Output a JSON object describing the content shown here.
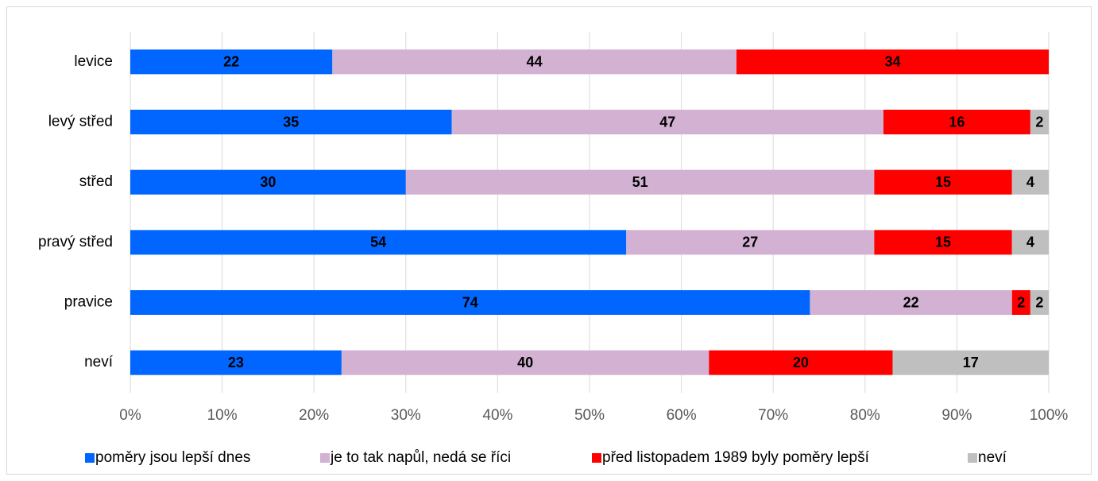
{
  "chart_data": {
    "type": "stacked_barh",
    "categories": [
      "levice",
      "levý střed",
      "střed",
      "pravý střed",
      "pravice",
      "neví"
    ],
    "series": [
      {
        "name": "poměry jsou lepší dnes",
        "color": "#0066ff",
        "values": [
          22,
          35,
          30,
          54,
          74,
          23
        ]
      },
      {
        "name": "je to tak napůl, nedá se říci",
        "color": "#d2b1d3",
        "values": [
          44,
          47,
          51,
          27,
          22,
          40
        ]
      },
      {
        "name": "před listopadem 1989 byly poměry lepší",
        "color": "#ff0000",
        "values": [
          34,
          16,
          15,
          15,
          2,
          20
        ]
      },
      {
        "name": "neví",
        "color": "#bfbfbf",
        "values": [
          null,
          2,
          4,
          4,
          2,
          17
        ]
      }
    ],
    "xlim": [
      0,
      100
    ],
    "xticks": [
      {
        "value": 0,
        "label": "0%"
      },
      {
        "value": 10,
        "label": "10%"
      },
      {
        "value": 20,
        "label": "20%"
      },
      {
        "value": 30,
        "label": "30%"
      },
      {
        "value": 40,
        "label": "40%"
      },
      {
        "value": 50,
        "label": "50%"
      },
      {
        "value": 60,
        "label": "60%"
      },
      {
        "value": 70,
        "label": "70%"
      },
      {
        "value": 80,
        "label": "80%"
      },
      {
        "value": 90,
        "label": "90%"
      },
      {
        "value": 100,
        "label": "100%"
      }
    ],
    "grid": true,
    "legend": "bottom"
  }
}
